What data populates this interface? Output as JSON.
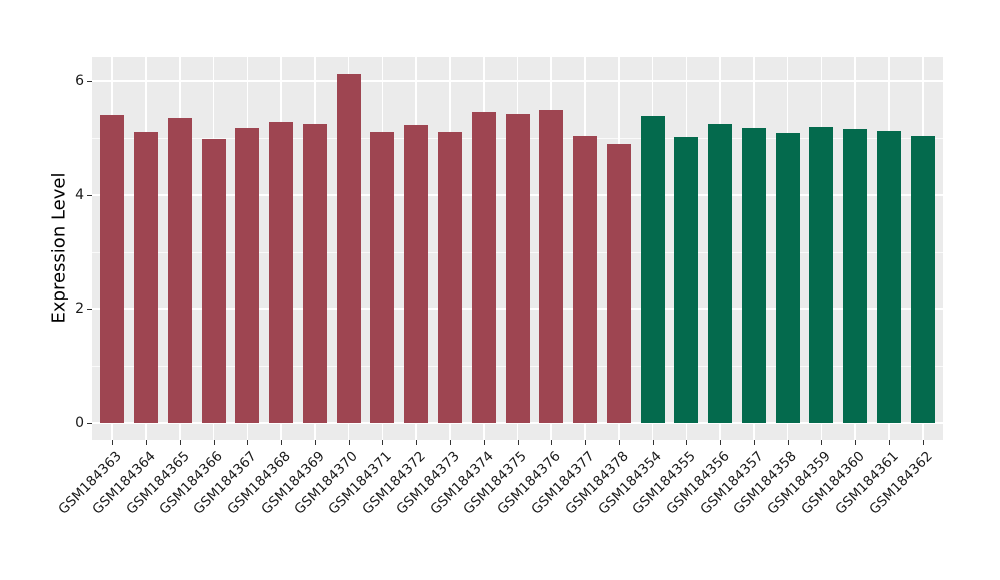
{
  "chart_data": {
    "type": "bar",
    "title": "",
    "xlabel": "",
    "ylabel": "Expression Level",
    "ylim": [
      0,
      6.42
    ],
    "yticks_major": [
      0,
      2,
      4,
      6
    ],
    "yticks_minor": [
      1,
      3,
      5
    ],
    "grid": "on",
    "legend": "none",
    "panel_background": "#EBEBEB",
    "gridline_color": "#FFFFFF",
    "text_color": "#1a1a1a",
    "group_colors": {
      "group1": "#9E4551",
      "group2": "#046A4D"
    },
    "categories": [
      "GSM184363",
      "GSM184364",
      "GSM184365",
      "GSM184366",
      "GSM184367",
      "GSM184368",
      "GSM184369",
      "GSM184370",
      "GSM184371",
      "GSM184372",
      "GSM184373",
      "GSM184374",
      "GSM184375",
      "GSM184376",
      "GSM184377",
      "GSM184378",
      "GSM184354",
      "GSM184355",
      "GSM184356",
      "GSM184357",
      "GSM184358",
      "GSM184359",
      "GSM184360",
      "GSM184361",
      "GSM184362"
    ],
    "values": [
      5.4,
      5.11,
      5.35,
      4.99,
      5.17,
      5.28,
      5.24,
      6.12,
      5.11,
      5.22,
      5.11,
      5.45,
      5.43,
      5.49,
      5.04,
      4.89,
      5.39,
      5.01,
      5.24,
      5.18,
      5.09,
      5.2,
      5.16,
      5.12,
      5.04
    ],
    "groups": [
      "group1",
      "group1",
      "group1",
      "group1",
      "group1",
      "group1",
      "group1",
      "group1",
      "group1",
      "group1",
      "group1",
      "group1",
      "group1",
      "group1",
      "group1",
      "group1",
      "group2",
      "group2",
      "group2",
      "group2",
      "group2",
      "group2",
      "group2",
      "group2",
      "group2"
    ]
  }
}
